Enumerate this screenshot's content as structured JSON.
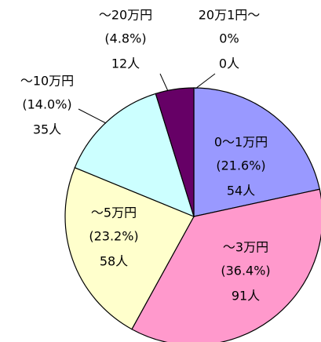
{
  "chart_data": {
    "type": "pie",
    "categories": [
      "0〜1万円",
      "〜3万円",
      "〜5万円",
      "〜10万円",
      "〜20万円",
      "20万1円〜"
    ],
    "values": [
      54,
      91,
      58,
      35,
      12,
      0
    ],
    "value_labels": [
      "54人",
      "91人",
      "58人",
      "35人",
      "12人",
      "0人"
    ],
    "percents": [
      21.6,
      36.4,
      23.2,
      14.0,
      4.8,
      0
    ],
    "percent_labels": [
      "(21.6%)",
      "(36.4%)",
      "(23.2%)",
      "(14.0%)",
      "(4.8%)",
      "0%"
    ],
    "colors": [
      "#9999ff",
      "#ff99cc",
      "#ffffcc",
      "#ccffff",
      "#660066",
      "#ffffff"
    ]
  }
}
